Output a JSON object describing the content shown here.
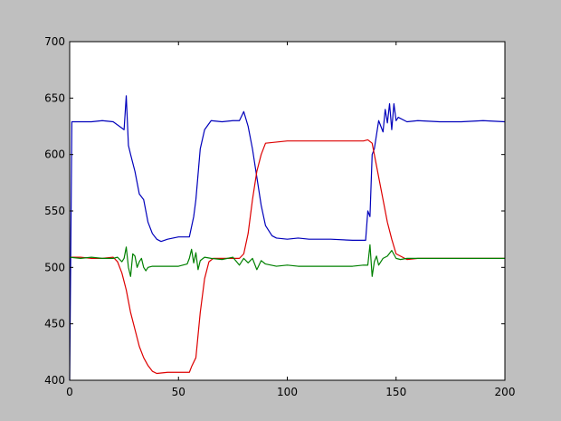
{
  "chart_data": {
    "type": "line",
    "title": "",
    "xlabel": "",
    "ylabel": "",
    "xlim": [
      0,
      200
    ],
    "ylim": [
      400,
      700
    ],
    "x_ticks": [
      0,
      50,
      100,
      150,
      200
    ],
    "y_ticks": [
      400,
      450,
      500,
      550,
      600,
      650,
      700
    ],
    "grid": false,
    "legend": "none",
    "colors": {
      "figure_background": "#bfbfbf",
      "plot_background": "#ffffff",
      "axes": "#000000"
    },
    "series": [
      {
        "color": "#0000bb",
        "x": [
          0,
          1,
          5,
          10,
          15,
          20,
          25,
          26,
          27,
          28,
          30,
          32,
          34,
          36,
          38,
          40,
          42,
          45,
          50,
          55,
          57,
          58,
          60,
          62,
          65,
          70,
          75,
          78,
          80,
          82,
          84,
          86,
          88,
          90,
          93,
          95,
          100,
          105,
          110,
          120,
          130,
          136,
          137,
          138,
          139,
          140,
          142,
          144,
          145,
          146,
          147,
          148,
          149,
          150,
          151,
          155,
          160,
          170,
          180,
          190,
          200
        ],
        "y": [
          400,
          629,
          629,
          629,
          630,
          629,
          622,
          652,
          608,
          600,
          585,
          565,
          560,
          540,
          530,
          525,
          523,
          525,
          527,
          527,
          545,
          560,
          605,
          622,
          630,
          629,
          630,
          630,
          638,
          625,
          605,
          580,
          555,
          537,
          528,
          526,
          525,
          526,
          525,
          525,
          524,
          524,
          550,
          545,
          600,
          605,
          630,
          620,
          640,
          628,
          645,
          622,
          645,
          630,
          633,
          629,
          630,
          629,
          629,
          630,
          629
        ]
      },
      {
        "color": "#dd0000",
        "x": [
          0,
          5,
          10,
          15,
          20,
          22,
          24,
          26,
          28,
          30,
          32,
          34,
          36,
          38,
          40,
          45,
          50,
          55,
          56,
          58,
          60,
          62,
          64,
          66,
          70,
          75,
          78,
          80,
          82,
          84,
          86,
          88,
          90,
          95,
          100,
          110,
          120,
          130,
          135,
          137,
          139,
          140,
          142,
          144,
          146,
          148,
          150,
          152,
          155,
          160,
          170,
          180,
          190,
          200
        ],
        "y": [
          509,
          509,
          508,
          508,
          509,
          505,
          495,
          480,
          460,
          445,
          430,
          420,
          413,
          408,
          406,
          407,
          407,
          407,
          412,
          420,
          460,
          490,
          505,
          508,
          508,
          508,
          508,
          512,
          530,
          560,
          585,
          600,
          610,
          611,
          612,
          612,
          612,
          612,
          612,
          613,
          610,
          600,
          580,
          560,
          540,
          525,
          512,
          510,
          507,
          508,
          508,
          508,
          508,
          508
        ]
      },
      {
        "color": "#008000",
        "x": [
          0,
          5,
          10,
          15,
          20,
          22,
          24,
          25,
          26,
          27,
          28,
          29,
          30,
          31,
          32,
          33,
          34,
          35,
          36,
          38,
          40,
          45,
          50,
          54,
          55,
          56,
          57,
          58,
          59,
          60,
          62,
          65,
          70,
          75,
          78,
          80,
          82,
          84,
          86,
          88,
          90,
          95,
          100,
          105,
          110,
          120,
          130,
          135,
          137,
          138,
          139,
          140,
          141,
          142,
          144,
          146,
          148,
          150,
          152,
          155,
          160,
          170,
          180,
          190,
          200
        ],
        "y": [
          509,
          508,
          509,
          508,
          508,
          509,
          505,
          508,
          518,
          500,
          492,
          512,
          510,
          500,
          505,
          508,
          500,
          497,
          500,
          501,
          501,
          501,
          501,
          503,
          508,
          516,
          504,
          513,
          498,
          506,
          509,
          508,
          507,
          509,
          502,
          508,
          504,
          508,
          498,
          506,
          503,
          501,
          502,
          501,
          501,
          501,
          501,
          502,
          502,
          520,
          492,
          505,
          510,
          502,
          508,
          510,
          515,
          508,
          507,
          508,
          508,
          508,
          508,
          508,
          508
        ]
      }
    ]
  }
}
